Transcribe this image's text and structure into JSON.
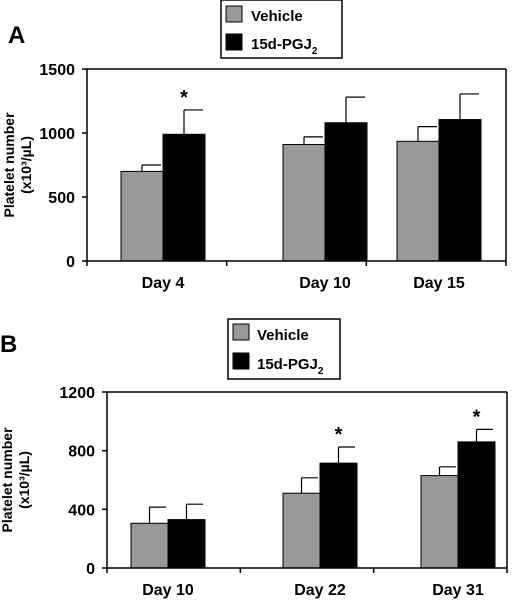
{
  "chart_data": [
    {
      "panel_label": "A",
      "type": "bar",
      "categories": [
        "Day 4",
        "Day 10",
        "Day 15"
      ],
      "ylabel_line1": "Platelet number",
      "ylabel_line2": "(x10³/µL)",
      "ylim": [
        0,
        1500
      ],
      "yticks": [
        0,
        500,
        1000,
        1500
      ],
      "grid": false,
      "legend_position": "top-center",
      "series": [
        {
          "name": "Vehicle",
          "color": "#999999",
          "values": [
            700,
            910,
            935
          ],
          "errors": [
            50,
            60,
            115
          ]
        },
        {
          "name": "15d-PGJ",
          "name_sub": "2",
          "color": "#000000",
          "values": [
            990,
            1080,
            1105
          ],
          "errors": [
            190,
            200,
            200
          ]
        }
      ],
      "annotations": [
        {
          "text": "*",
          "series": 1,
          "category": 0
        }
      ]
    },
    {
      "panel_label": "B",
      "type": "bar",
      "categories": [
        "Day 10",
        "Day 22",
        "Day 31"
      ],
      "ylabel_line1": "Platelet number",
      "ylabel_line2": "(x10³/µL)",
      "ylim": [
        0,
        1200
      ],
      "yticks": [
        0,
        400,
        800,
        1200
      ],
      "grid": false,
      "legend_position": "top-center",
      "series": [
        {
          "name": "Vehicle",
          "color": "#999999",
          "values": [
            305,
            510,
            630
          ],
          "errors": [
            110,
            105,
            60
          ]
        },
        {
          "name": "15d-PGJ",
          "name_sub": "2",
          "color": "#000000",
          "values": [
            330,
            715,
            860
          ],
          "errors": [
            105,
            110,
            85
          ]
        }
      ],
      "annotations": [
        {
          "text": "*",
          "series": 1,
          "category": 1
        },
        {
          "text": "*",
          "series": 1,
          "category": 2
        }
      ]
    }
  ]
}
